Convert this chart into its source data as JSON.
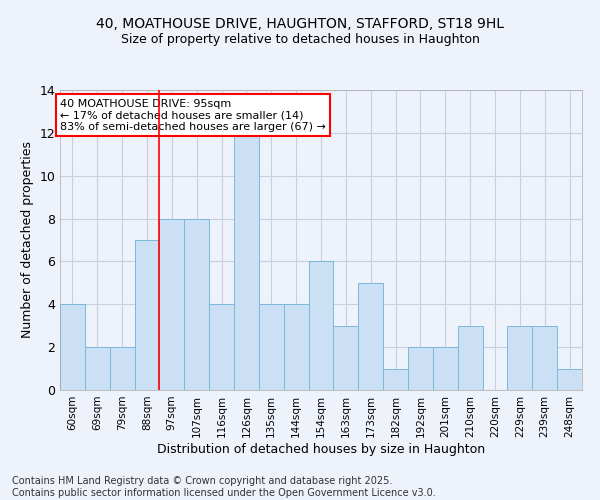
{
  "title1": "40, MOATHOUSE DRIVE, HAUGHTON, STAFFORD, ST18 9HL",
  "title2": "Size of property relative to detached houses in Haughton",
  "xlabel": "Distribution of detached houses by size in Haughton",
  "ylabel": "Number of detached properties",
  "categories": [
    "60sqm",
    "69sqm",
    "79sqm",
    "88sqm",
    "97sqm",
    "107sqm",
    "116sqm",
    "126sqm",
    "135sqm",
    "144sqm",
    "154sqm",
    "163sqm",
    "173sqm",
    "182sqm",
    "192sqm",
    "201sqm",
    "210sqm",
    "220sqm",
    "229sqm",
    "239sqm",
    "248sqm"
  ],
  "values": [
    4,
    2,
    2,
    7,
    8,
    8,
    4,
    12,
    4,
    4,
    6,
    3,
    5,
    1,
    2,
    2,
    3,
    0,
    3,
    3,
    1
  ],
  "bar_color": "#cce0f5",
  "bar_edge_color": "#7ab8d9",
  "bar_edge_width": 0.7,
  "grid_color": "#c8d0e0",
  "background_color": "#eef2fa",
  "red_line_x": 3.5,
  "annotation_text": "40 MOATHOUSE DRIVE: 95sqm\n← 17% of detached houses are smaller (14)\n83% of semi-detached houses are larger (67) →",
  "annotation_box_color": "white",
  "annotation_box_edge_color": "red",
  "ylim": [
    0,
    14
  ],
  "yticks": [
    0,
    2,
    4,
    6,
    8,
    10,
    12,
    14
  ],
  "footer": "Contains HM Land Registry data © Crown copyright and database right 2025.\nContains public sector information licensed under the Open Government Licence v3.0.",
  "footer_fontsize": 7,
  "title1_fontsize": 10,
  "title2_fontsize": 9,
  "xlabel_fontsize": 9,
  "ylabel_fontsize": 9,
  "annot_fontsize": 8,
  "xtick_fontsize": 7.5,
  "ytick_fontsize": 9
}
